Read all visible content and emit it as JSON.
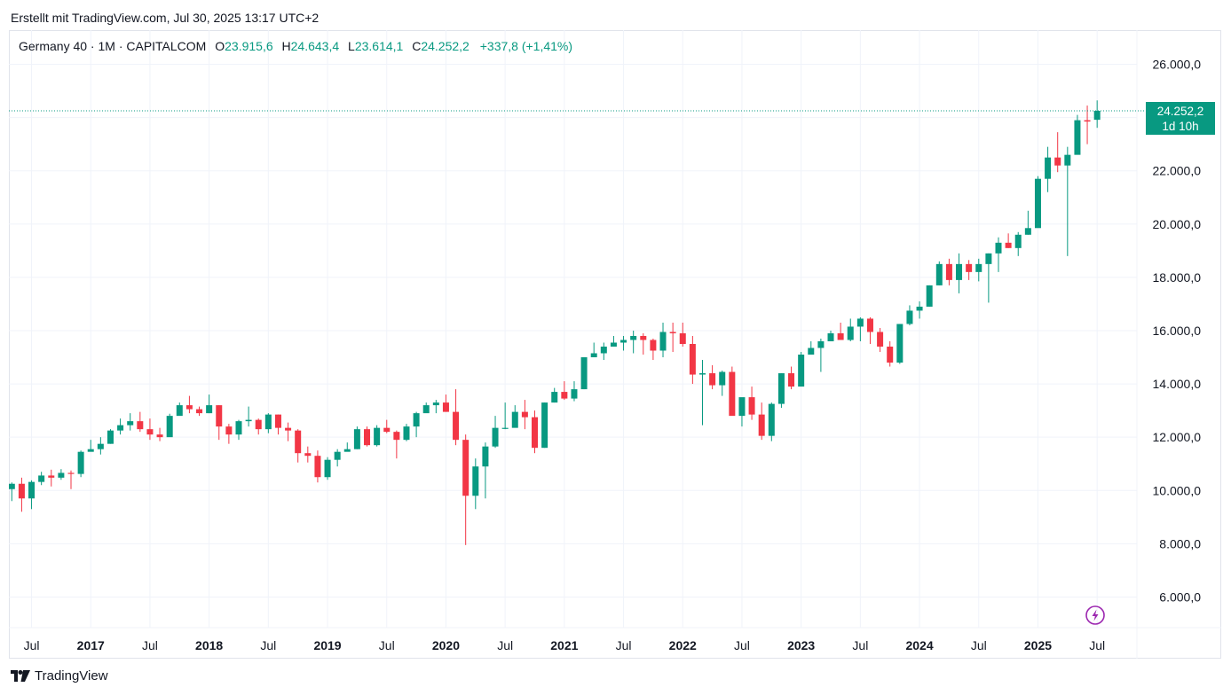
{
  "header": {
    "credit": "Erstellt mit TradingView.com, Jul 30, 2025 13:17 UTC+2"
  },
  "legend": {
    "symbol": "Germany 40 · 1M · CAPITALCOM",
    "open_label": "O",
    "open_value": "23.915,6",
    "high_label": "H",
    "high_value": "24.643,4",
    "low_label": "L",
    "low_value": "23.614,1",
    "close_label": "C",
    "close_value": "24.252,2",
    "change": "+337,8 (+1,41%)"
  },
  "price_badge": {
    "price": "24.252,2",
    "countdown": "1d 10h"
  },
  "footer": {
    "brand": "TradingView"
  },
  "colors": {
    "up": "#089981",
    "down": "#F23645",
    "grid": "#F0F3FA",
    "text": "#131722",
    "accent": "#9C27B0"
  },
  "icons": {
    "bolt": "lightning-bolt-icon",
    "logo": "tradingview-logo-icon"
  },
  "chart_data": {
    "type": "candlestick",
    "interval": "1M",
    "ylim": [
      5000,
      27000
    ],
    "y_ticks": [
      6000,
      8000,
      10000,
      12000,
      14000,
      16000,
      18000,
      20000,
      22000,
      24000,
      26000
    ],
    "y_tick_labels": [
      "6.000,0",
      "8.000,0",
      "10.000,0",
      "12.000,0",
      "14.000,0",
      "16.000,0",
      "18.000,0",
      "20.000,0",
      "22.000,0",
      "",
      "26.000,0"
    ],
    "x_start": "2016-05",
    "x_ticks": [
      {
        "index": 2,
        "label": "Jul",
        "bold": false
      },
      {
        "index": 8,
        "label": "2017",
        "bold": true
      },
      {
        "index": 14,
        "label": "Jul",
        "bold": false
      },
      {
        "index": 20,
        "label": "2018",
        "bold": true
      },
      {
        "index": 26,
        "label": "Jul",
        "bold": false
      },
      {
        "index": 32,
        "label": "2019",
        "bold": true
      },
      {
        "index": 38,
        "label": "Jul",
        "bold": false
      },
      {
        "index": 44,
        "label": "2020",
        "bold": true
      },
      {
        "index": 50,
        "label": "Jul",
        "bold": false
      },
      {
        "index": 56,
        "label": "2021",
        "bold": true
      },
      {
        "index": 62,
        "label": "Jul",
        "bold": false
      },
      {
        "index": 68,
        "label": "2022",
        "bold": true
      },
      {
        "index": 74,
        "label": "Jul",
        "bold": false
      },
      {
        "index": 80,
        "label": "2023",
        "bold": true
      },
      {
        "index": 86,
        "label": "Jul",
        "bold": false
      },
      {
        "index": 92,
        "label": "2024",
        "bold": true
      },
      {
        "index": 98,
        "label": "Jul",
        "bold": false
      },
      {
        "index": 104,
        "label": "2025",
        "bold": true
      },
      {
        "index": 110,
        "label": "Jul",
        "bold": false
      }
    ],
    "last_price": 24252.2,
    "candles": [
      {
        "d": "2016-05",
        "o": 10050,
        "h": 10300,
        "l": 9600,
        "c": 10250
      },
      {
        "d": "2016-06",
        "o": 10250,
        "h": 10480,
        "l": 9200,
        "c": 9700
      },
      {
        "d": "2016-07",
        "o": 9700,
        "h": 10380,
        "l": 9300,
        "c": 10320
      },
      {
        "d": "2016-08",
        "o": 10320,
        "h": 10700,
        "l": 10200,
        "c": 10560
      },
      {
        "d": "2016-09",
        "o": 10560,
        "h": 10780,
        "l": 10150,
        "c": 10480
      },
      {
        "d": "2016-10",
        "o": 10480,
        "h": 10800,
        "l": 10400,
        "c": 10660
      },
      {
        "d": "2016-11",
        "o": 10660,
        "h": 10750,
        "l": 10050,
        "c": 10620
      },
      {
        "d": "2016-12",
        "o": 10620,
        "h": 11500,
        "l": 10500,
        "c": 11450
      },
      {
        "d": "2017-01",
        "o": 11450,
        "h": 11900,
        "l": 11500,
        "c": 11550
      },
      {
        "d": "2017-02",
        "o": 11550,
        "h": 12000,
        "l": 11350,
        "c": 11750
      },
      {
        "d": "2017-03",
        "o": 11750,
        "h": 12300,
        "l": 11750,
        "c": 12250
      },
      {
        "d": "2017-04",
        "o": 12250,
        "h": 12700,
        "l": 12100,
        "c": 12450
      },
      {
        "d": "2017-05",
        "o": 12450,
        "h": 12900,
        "l": 12250,
        "c": 12600
      },
      {
        "d": "2017-06",
        "o": 12600,
        "h": 12950,
        "l": 12200,
        "c": 12300
      },
      {
        "d": "2017-07",
        "o": 12300,
        "h": 12700,
        "l": 11900,
        "c": 12100
      },
      {
        "d": "2017-08",
        "o": 12100,
        "h": 12350,
        "l": 11850,
        "c": 12000
      },
      {
        "d": "2017-09",
        "o": 12000,
        "h": 12880,
        "l": 12100,
        "c": 12800
      },
      {
        "d": "2017-10",
        "o": 12800,
        "h": 13300,
        "l": 12900,
        "c": 13200
      },
      {
        "d": "2017-11",
        "o": 13200,
        "h": 13550,
        "l": 12900,
        "c": 13050
      },
      {
        "d": "2017-12",
        "o": 13050,
        "h": 13150,
        "l": 12800,
        "c": 12900
      },
      {
        "d": "2018-01",
        "o": 12900,
        "h": 13600,
        "l": 12900,
        "c": 13200
      },
      {
        "d": "2018-02",
        "o": 13200,
        "h": 13200,
        "l": 11900,
        "c": 12400
      },
      {
        "d": "2018-03",
        "o": 12400,
        "h": 12500,
        "l": 11750,
        "c": 12100
      },
      {
        "d": "2018-04",
        "o": 12100,
        "h": 12650,
        "l": 11900,
        "c": 12600
      },
      {
        "d": "2018-05",
        "o": 12600,
        "h": 13150,
        "l": 12400,
        "c": 12650
      },
      {
        "d": "2018-06",
        "o": 12650,
        "h": 12700,
        "l": 12100,
        "c": 12300
      },
      {
        "d": "2018-07",
        "o": 12300,
        "h": 12900,
        "l": 12150,
        "c": 12850
      },
      {
        "d": "2018-08",
        "o": 12850,
        "h": 12850,
        "l": 12100,
        "c": 12350
      },
      {
        "d": "2018-09",
        "o": 12350,
        "h": 12550,
        "l": 11850,
        "c": 12250
      },
      {
        "d": "2018-10",
        "o": 12250,
        "h": 12300,
        "l": 11050,
        "c": 11400
      },
      {
        "d": "2018-11",
        "o": 11400,
        "h": 11650,
        "l": 11050,
        "c": 11300
      },
      {
        "d": "2018-12",
        "o": 11300,
        "h": 11500,
        "l": 10300,
        "c": 10500
      },
      {
        "d": "2019-01",
        "o": 10500,
        "h": 11250,
        "l": 10400,
        "c": 11150
      },
      {
        "d": "2019-02",
        "o": 11150,
        "h": 11550,
        "l": 10900,
        "c": 11450
      },
      {
        "d": "2019-03",
        "o": 11450,
        "h": 11800,
        "l": 11500,
        "c": 11550
      },
      {
        "d": "2019-04",
        "o": 11550,
        "h": 12400,
        "l": 11550,
        "c": 12300
      },
      {
        "d": "2019-05",
        "o": 12300,
        "h": 12400,
        "l": 11650,
        "c": 11700
      },
      {
        "d": "2019-06",
        "o": 11700,
        "h": 12450,
        "l": 11650,
        "c": 12350
      },
      {
        "d": "2019-07",
        "o": 12350,
        "h": 12650,
        "l": 12150,
        "c": 12200
      },
      {
        "d": "2019-08",
        "o": 12200,
        "h": 12250,
        "l": 11200,
        "c": 11900
      },
      {
        "d": "2019-09",
        "o": 11900,
        "h": 12500,
        "l": 11850,
        "c": 12400
      },
      {
        "d": "2019-10",
        "o": 12400,
        "h": 12950,
        "l": 12000,
        "c": 12900
      },
      {
        "d": "2019-11",
        "o": 12900,
        "h": 13300,
        "l": 12950,
        "c": 13200
      },
      {
        "d": "2019-12",
        "o": 13200,
        "h": 13400,
        "l": 12900,
        "c": 13300
      },
      {
        "d": "2020-01",
        "o": 13300,
        "h": 13600,
        "l": 12950,
        "c": 12950
      },
      {
        "d": "2020-02",
        "o": 12950,
        "h": 13800,
        "l": 11700,
        "c": 11900
      },
      {
        "d": "2020-03",
        "o": 11900,
        "h": 12100,
        "l": 7950,
        "c": 9800
      },
      {
        "d": "2020-04",
        "o": 9800,
        "h": 11200,
        "l": 9300,
        "c": 10900
      },
      {
        "d": "2020-05",
        "o": 10900,
        "h": 11800,
        "l": 9700,
        "c": 11650
      },
      {
        "d": "2020-06",
        "o": 11650,
        "h": 12800,
        "l": 11600,
        "c": 12350
      },
      {
        "d": "2020-07",
        "o": 12350,
        "h": 13300,
        "l": 12300,
        "c": 12350
      },
      {
        "d": "2020-08",
        "o": 12350,
        "h": 13200,
        "l": 12500,
        "c": 12950
      },
      {
        "d": "2020-09",
        "o": 12950,
        "h": 13400,
        "l": 12300,
        "c": 12750
      },
      {
        "d": "2020-10",
        "o": 12750,
        "h": 13000,
        "l": 11400,
        "c": 11600
      },
      {
        "d": "2020-11",
        "o": 11600,
        "h": 13300,
        "l": 11600,
        "c": 13300
      },
      {
        "d": "2020-12",
        "o": 13300,
        "h": 13850,
        "l": 13300,
        "c": 13700
      },
      {
        "d": "2021-01",
        "o": 13700,
        "h": 14100,
        "l": 13400,
        "c": 13450
      },
      {
        "d": "2021-02",
        "o": 13450,
        "h": 14100,
        "l": 13350,
        "c": 13800
      },
      {
        "d": "2021-03",
        "o": 13800,
        "h": 15000,
        "l": 13800,
        "c": 15000
      },
      {
        "d": "2021-04",
        "o": 15000,
        "h": 15550,
        "l": 15100,
        "c": 15150
      },
      {
        "d": "2021-05",
        "o": 15150,
        "h": 15550,
        "l": 14900,
        "c": 15400
      },
      {
        "d": "2021-06",
        "o": 15400,
        "h": 15800,
        "l": 15450,
        "c": 15550
      },
      {
        "d": "2021-07",
        "o": 15550,
        "h": 15800,
        "l": 15250,
        "c": 15650
      },
      {
        "d": "2021-08",
        "o": 15650,
        "h": 16000,
        "l": 15150,
        "c": 15800
      },
      {
        "d": "2021-09",
        "o": 15800,
        "h": 15900,
        "l": 15100,
        "c": 15650
      },
      {
        "d": "2021-10",
        "o": 15650,
        "h": 15700,
        "l": 14900,
        "c": 15250
      },
      {
        "d": "2021-11",
        "o": 15250,
        "h": 16300,
        "l": 15000,
        "c": 15950
      },
      {
        "d": "2021-12",
        "o": 15950,
        "h": 16300,
        "l": 15200,
        "c": 15900
      },
      {
        "d": "2022-01",
        "o": 15900,
        "h": 16300,
        "l": 15400,
        "c": 15500
      },
      {
        "d": "2022-02",
        "o": 15500,
        "h": 15800,
        "l": 14000,
        "c": 14350
      },
      {
        "d": "2022-03",
        "o": 14350,
        "h": 14900,
        "l": 12450,
        "c": 14400
      },
      {
        "d": "2022-04",
        "o": 14400,
        "h": 14700,
        "l": 13800,
        "c": 13950
      },
      {
        "d": "2022-05",
        "o": 13950,
        "h": 14500,
        "l": 13550,
        "c": 14450
      },
      {
        "d": "2022-06",
        "o": 14450,
        "h": 14650,
        "l": 12900,
        "c": 12800
      },
      {
        "d": "2022-07",
        "o": 12800,
        "h": 13400,
        "l": 12400,
        "c": 13500
      },
      {
        "d": "2022-08",
        "o": 13500,
        "h": 13900,
        "l": 12650,
        "c": 12850
      },
      {
        "d": "2022-09",
        "o": 12850,
        "h": 13300,
        "l": 11900,
        "c": 12050
      },
      {
        "d": "2022-10",
        "o": 12050,
        "h": 13300,
        "l": 11850,
        "c": 13250
      },
      {
        "d": "2022-11",
        "o": 13250,
        "h": 14400,
        "l": 13100,
        "c": 14400
      },
      {
        "d": "2022-12",
        "o": 14400,
        "h": 14650,
        "l": 13800,
        "c": 13900
      },
      {
        "d": "2023-01",
        "o": 13900,
        "h": 15200,
        "l": 13900,
        "c": 15100
      },
      {
        "d": "2023-02",
        "o": 15100,
        "h": 15600,
        "l": 15200,
        "c": 15350
      },
      {
        "d": "2023-03",
        "o": 15350,
        "h": 15700,
        "l": 14450,
        "c": 15600
      },
      {
        "d": "2023-04",
        "o": 15600,
        "h": 16000,
        "l": 15700,
        "c": 15900
      },
      {
        "d": "2023-05",
        "o": 15900,
        "h": 16300,
        "l": 15700,
        "c": 15650
      },
      {
        "d": "2023-06",
        "o": 15650,
        "h": 16450,
        "l": 15600,
        "c": 16150
      },
      {
        "d": "2023-07",
        "o": 16150,
        "h": 16500,
        "l": 15600,
        "c": 16450
      },
      {
        "d": "2023-08",
        "o": 16450,
        "h": 16500,
        "l": 15500,
        "c": 15950
      },
      {
        "d": "2023-09",
        "o": 15950,
        "h": 16100,
        "l": 15200,
        "c": 15400
      },
      {
        "d": "2023-10",
        "o": 15400,
        "h": 15600,
        "l": 14650,
        "c": 14800
      },
      {
        "d": "2023-11",
        "o": 14800,
        "h": 16250,
        "l": 14750,
        "c": 16250
      },
      {
        "d": "2023-12",
        "o": 16250,
        "h": 16950,
        "l": 16200,
        "c": 16750
      },
      {
        "d": "2024-01",
        "o": 16750,
        "h": 17100,
        "l": 16450,
        "c": 16900
      },
      {
        "d": "2024-02",
        "o": 16900,
        "h": 17700,
        "l": 16900,
        "c": 17700
      },
      {
        "d": "2024-03",
        "o": 17700,
        "h": 18600,
        "l": 17700,
        "c": 18500
      },
      {
        "d": "2024-04",
        "o": 18500,
        "h": 18700,
        "l": 17700,
        "c": 17900
      },
      {
        "d": "2024-05",
        "o": 17900,
        "h": 18900,
        "l": 17400,
        "c": 18500
      },
      {
        "d": "2024-06",
        "o": 18500,
        "h": 18650,
        "l": 17900,
        "c": 18200
      },
      {
        "d": "2024-07",
        "o": 18200,
        "h": 18700,
        "l": 17850,
        "c": 18500
      },
      {
        "d": "2024-08",
        "o": 18500,
        "h": 18900,
        "l": 17050,
        "c": 18900
      },
      {
        "d": "2024-09",
        "o": 18900,
        "h": 19500,
        "l": 18200,
        "c": 19300
      },
      {
        "d": "2024-10",
        "o": 19300,
        "h": 19650,
        "l": 19100,
        "c": 19100
      },
      {
        "d": "2024-11",
        "o": 19100,
        "h": 19700,
        "l": 18800,
        "c": 19600
      },
      {
        "d": "2024-12",
        "o": 19600,
        "h": 20500,
        "l": 19600,
        "c": 19850
      },
      {
        "d": "2025-01",
        "o": 19850,
        "h": 21800,
        "l": 19900,
        "c": 21700
      },
      {
        "d": "2025-02",
        "o": 21700,
        "h": 22900,
        "l": 21200,
        "c": 22500
      },
      {
        "d": "2025-03",
        "o": 22500,
        "h": 23450,
        "l": 21950,
        "c": 22200
      },
      {
        "d": "2025-04",
        "o": 22200,
        "h": 22900,
        "l": 18800,
        "c": 22600
      },
      {
        "d": "2025-05",
        "o": 22600,
        "h": 24100,
        "l": 22650,
        "c": 23900
      },
      {
        "d": "2025-06",
        "o": 23900,
        "h": 24450,
        "l": 23000,
        "c": 23850
      },
      {
        "d": "2025-07",
        "o": 23915.6,
        "h": 24643.4,
        "l": 23614.1,
        "c": 24252.2
      }
    ]
  }
}
